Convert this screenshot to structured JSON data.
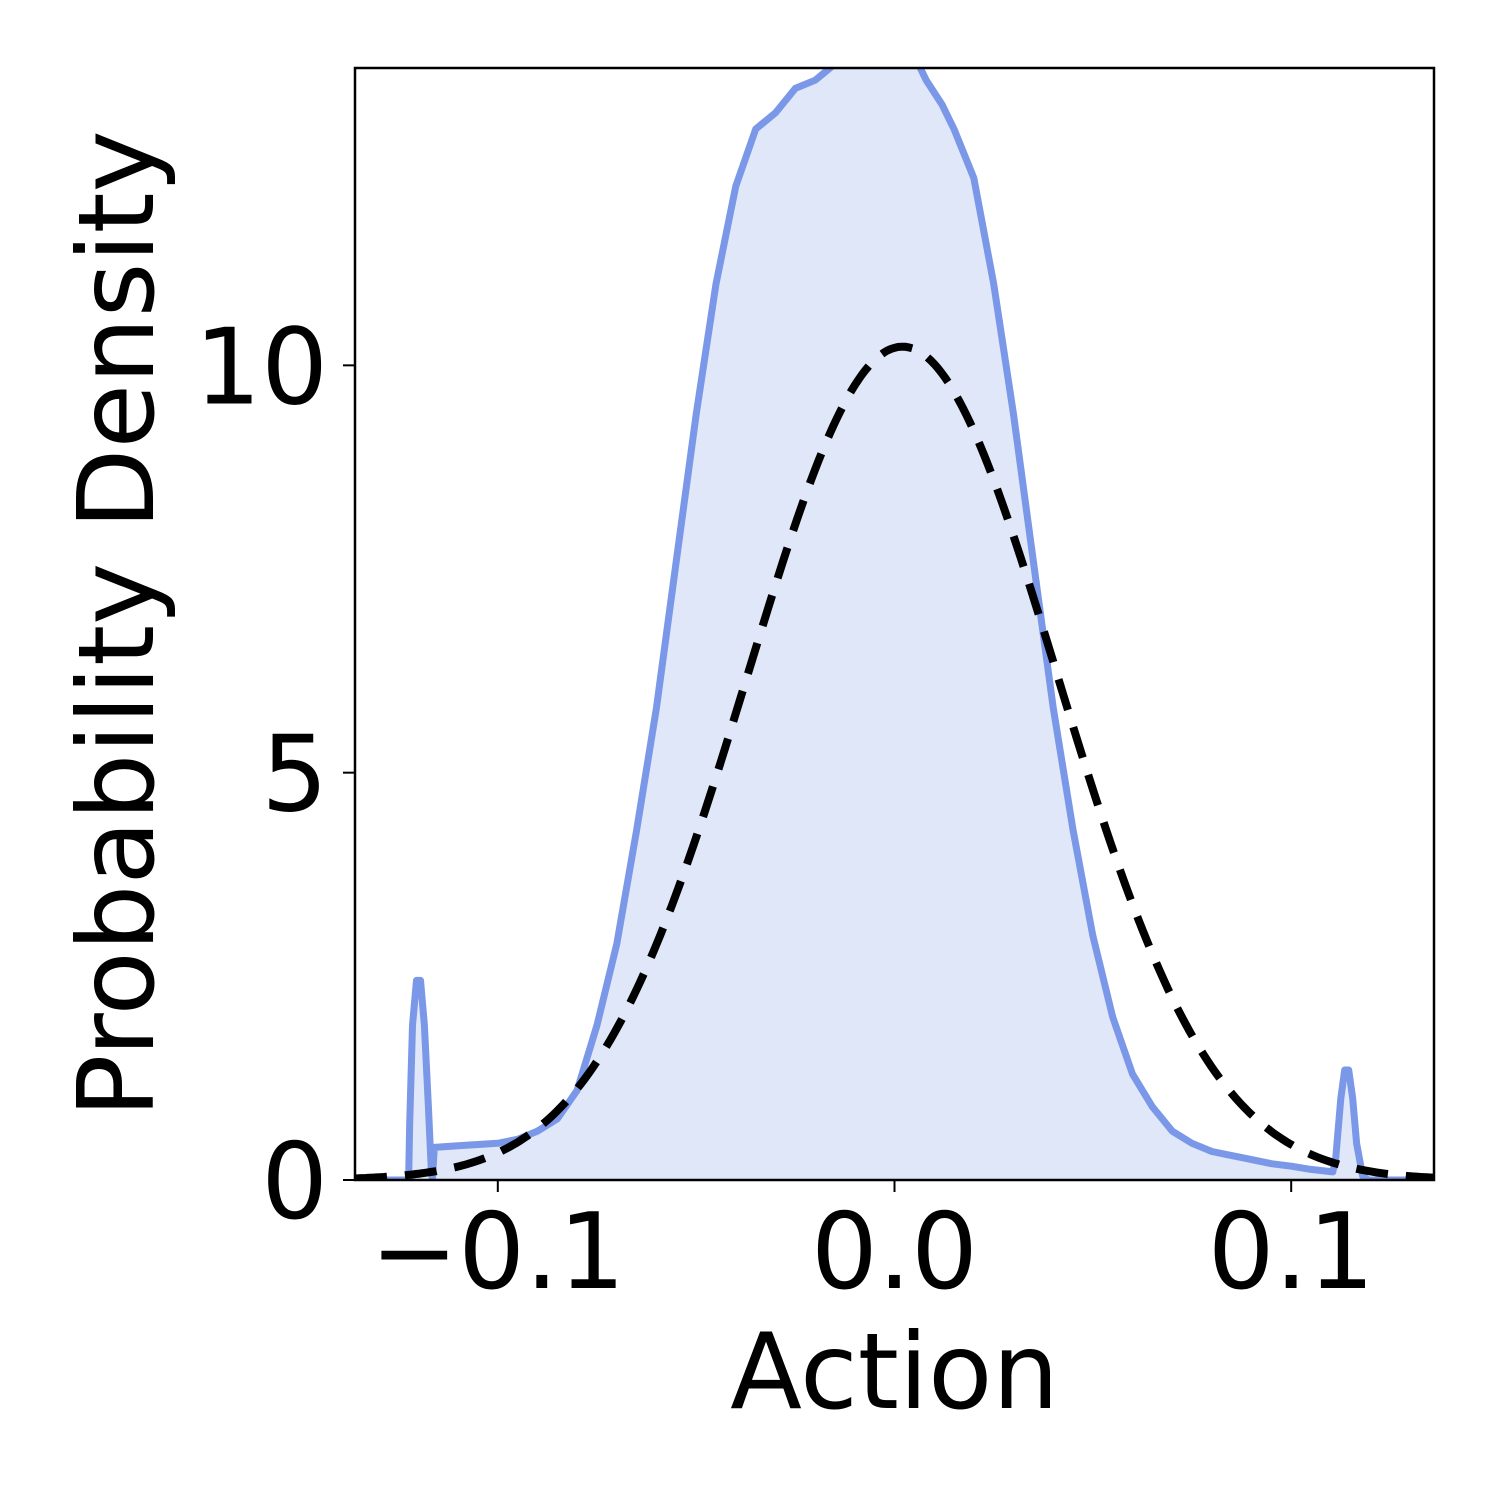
{
  "chart_data": {
    "type": "area",
    "xlabel": "Action",
    "ylabel": "Probability Density",
    "xlim": [
      -0.136,
      0.136
    ],
    "ylim": [
      0,
      13.65
    ],
    "x_ticks": [
      -0.1,
      0.0,
      0.1
    ],
    "x_tick_labels": [
      "−0.1",
      "0.0",
      "0.1"
    ],
    "y_ticks": [
      0,
      5,
      10
    ],
    "y_tick_labels": [
      "0",
      "5",
      "10"
    ],
    "grid": false,
    "legend": "none",
    "series": [
      {
        "style": "filled-solid",
        "color": "#7a97e8",
        "fill": "#dfe7f9",
        "x": [
          -0.136,
          -0.1225,
          -0.1222,
          -0.1215,
          -0.1205,
          -0.1195,
          -0.1185,
          -0.1175,
          -0.1168,
          -0.1165,
          -0.116,
          -0.11,
          -0.1,
          -0.095,
          -0.09,
          -0.085,
          -0.08,
          -0.075,
          -0.07,
          -0.065,
          -0.06,
          -0.055,
          -0.05,
          -0.045,
          -0.04,
          -0.035,
          -0.03,
          -0.025,
          -0.02,
          -0.015,
          -0.012,
          -0.01,
          -0.007,
          -0.005,
          -0.003,
          0.0,
          0.002,
          0.004,
          0.008,
          0.012,
          0.015,
          0.02,
          0.025,
          0.03,
          0.035,
          0.04,
          0.045,
          0.05,
          0.055,
          0.06,
          0.065,
          0.07,
          0.075,
          0.08,
          0.085,
          0.09,
          0.095,
          0.1,
          0.105,
          0.1105,
          0.1112,
          0.1125,
          0.1135,
          0.1145,
          0.1155,
          0.1165,
          0.118,
          0.1195,
          0.136
        ],
        "y": [
          0,
          0,
          0.7,
          1.9,
          2.45,
          2.45,
          1.9,
          0.9,
          0.15,
          0,
          0.4,
          0.42,
          0.45,
          0.5,
          0.6,
          0.75,
          1.1,
          1.9,
          2.9,
          4.3,
          5.8,
          7.6,
          9.4,
          11.0,
          12.2,
          12.9,
          13.1,
          13.4,
          13.5,
          13.7,
          13.75,
          13.9,
          13.9,
          13.95,
          14.0,
          14.1,
          14.05,
          13.9,
          13.5,
          13.2,
          12.9,
          12.3,
          11.0,
          9.4,
          7.6,
          5.8,
          4.3,
          3.0,
          2.0,
          1.3,
          0.9,
          0.6,
          0.45,
          0.35,
          0.3,
          0.25,
          0.2,
          0.17,
          0.13,
          0.1,
          0.25,
          1.0,
          1.35,
          1.35,
          1.0,
          0.45,
          0.05,
          0,
          0
        ]
      },
      {
        "style": "dashed",
        "color": "#000000",
        "distribution": "normal",
        "mean": 0.002,
        "std": 0.039
      }
    ]
  }
}
